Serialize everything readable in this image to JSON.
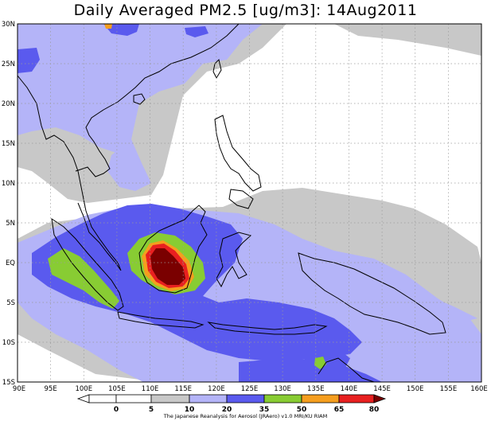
{
  "title": "Daily Averaged PM2.5 [ug/m3]: 14Aug2011",
  "credit": "The Japanese Reanalysis for Aerosol (JRAero) v1.0 MRI/KU RIAM",
  "lon_labels": [
    "90E",
    "95E",
    "100E",
    "105E",
    "110E",
    "115E",
    "120E",
    "125E",
    "130E",
    "135E",
    "140E",
    "145E",
    "150E",
    "155E",
    "160E"
  ],
  "lat_labels": [
    "30N",
    "25N",
    "20N",
    "15N",
    "10N",
    "5N",
    "EQ",
    "5S",
    "10S",
    "15S"
  ],
  "colorbar": {
    "labels": [
      "0",
      "5",
      "10",
      "20",
      "35",
      "50",
      "65",
      "80"
    ],
    "colors": [
      "#ffffff",
      "#ffffff",
      "#c8c8c8",
      "#b4b4f8",
      "#5a5aee",
      "#88cc33",
      "#f59e1e",
      "#e82020",
      "#7a0000"
    ]
  },
  "chart_data": {
    "type": "heatmap",
    "title": "Daily Averaged PM2.5 [ug/m3]: 14Aug2011",
    "date": "14Aug2011",
    "units": "ug/m3",
    "lon_range": [
      90,
      160
    ],
    "lat_range": [
      -15,
      30
    ],
    "levels": [
      0,
      5,
      10,
      20,
      35,
      50,
      65,
      80
    ],
    "grid": true,
    "colorbar_placement": "bottom"
  }
}
